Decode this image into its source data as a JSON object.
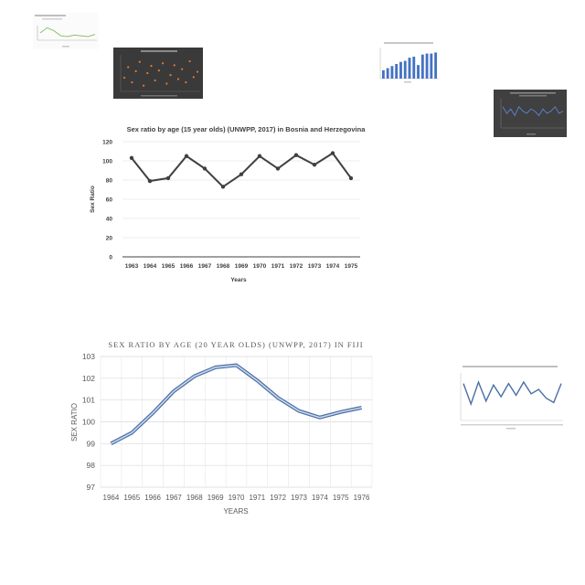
{
  "chart_data": [
    {
      "type": "line",
      "title": "Sex ratio by age (15 year olds) (UNWPP, 2017) in Bosnia and Herzegovina",
      "xlabel": "Years",
      "ylabel": "Sex Ratio",
      "categories": [
        "1963",
        "1964",
        "1965",
        "1966",
        "1967",
        "1968",
        "1969",
        "1970",
        "1971",
        "1972",
        "1973",
        "1974",
        "1975"
      ],
      "series": [
        {
          "values": [
            103,
            79,
            82,
            105,
            92,
            73,
            86,
            105,
            92,
            106,
            96,
            108,
            82
          ]
        }
      ],
      "ylim": [
        0,
        120
      ],
      "yticks": [
        "0",
        "20",
        "40",
        "60",
        "80",
        "100",
        "120"
      ],
      "grid": true,
      "color": "#404040"
    },
    {
      "type": "line",
      "title": "SEX RATIO BY AGE (20 YEAR OLDS) (UNWPP, 2017) IN FIJI",
      "xlabel": "YEARS",
      "ylabel": "SEX RATIO",
      "categories": [
        "1964",
        "1965",
        "1966",
        "1967",
        "1968",
        "1969",
        "1970",
        "1971",
        "1972",
        "1973",
        "1974",
        "1975",
        "1976"
      ],
      "series": [
        {
          "values": [
            99.0,
            99.5,
            100.4,
            101.4,
            102.1,
            102.5,
            102.6,
            101.9,
            101.1,
            100.5,
            100.2,
            100.45,
            100.65
          ]
        }
      ],
      "ylim": [
        97,
        103
      ],
      "yticks": [
        "97",
        "98",
        "99",
        "100",
        "101",
        "102",
        "103"
      ],
      "grid": true,
      "color": "#4a6fa5"
    }
  ],
  "thumbnails": {
    "t1": {
      "values": [
        20,
        34,
        26,
        12,
        10,
        14,
        12,
        10,
        16
      ]
    },
    "t2": {
      "values": [
        1080,
        1240,
        1010,
        1180,
        1320,
        960,
        1150,
        1260,
        1040,
        1190,
        1300,
        990,
        1120,
        1270,
        1060,
        1210,
        1010,
        1330,
        1090,
        1170
      ]
    },
    "t3": {
      "values": [
        8,
        10,
        12,
        14,
        16,
        17,
        20,
        21,
        13,
        23,
        24,
        24,
        25
      ]
    },
    "t4": {
      "values": [
        104,
        101,
        103,
        100,
        104,
        102,
        101,
        103,
        102,
        100,
        103,
        101,
        102,
        104,
        101,
        102
      ]
    },
    "t5": {
      "values": [
        104,
        90,
        105,
        92,
        103,
        95,
        104,
        96,
        105,
        97,
        100,
        94,
        91,
        104
      ]
    }
  }
}
